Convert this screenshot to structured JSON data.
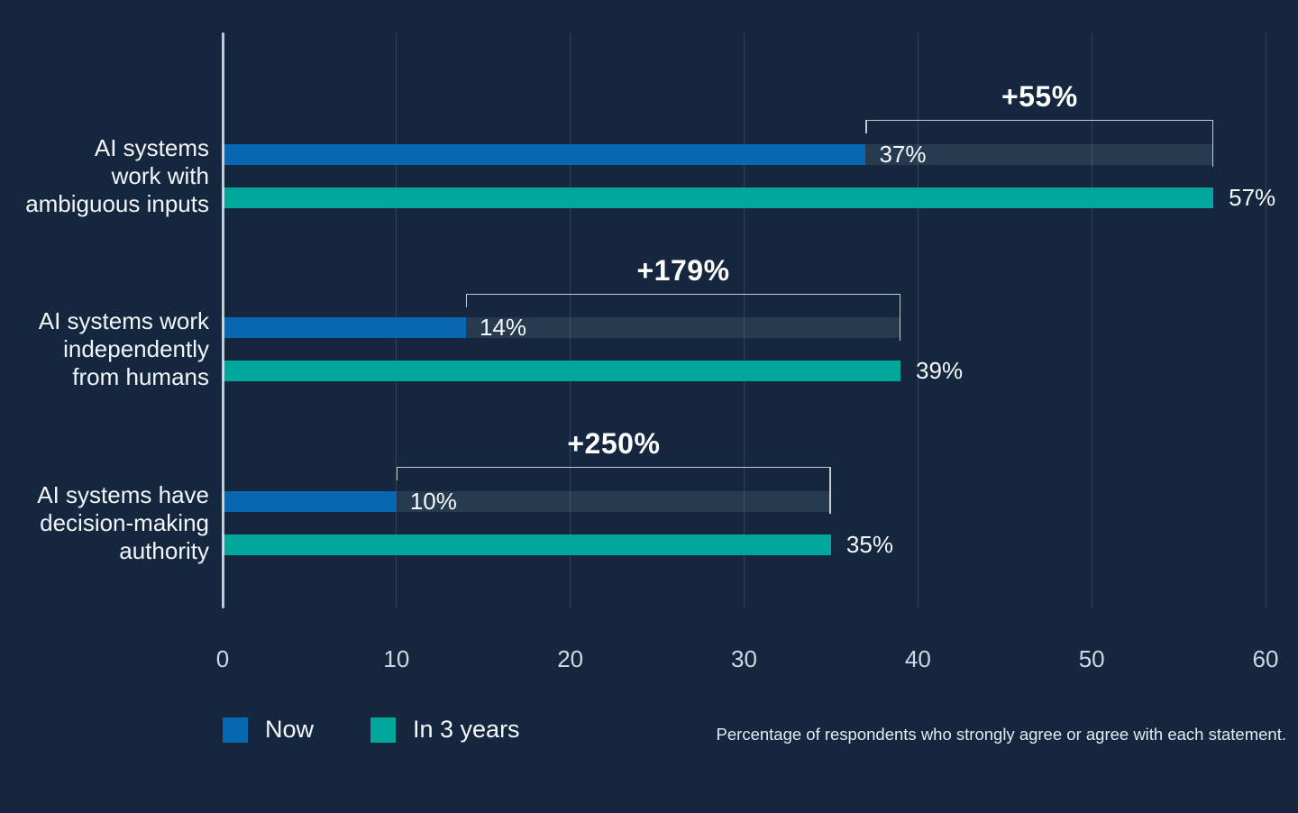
{
  "chart_data": {
    "type": "bar",
    "orientation": "horizontal",
    "title": "",
    "xlabel": "",
    "ylabel": "",
    "xlim": [
      0,
      60
    ],
    "x_ticks": [
      "0",
      "10",
      "20",
      "30",
      "40",
      "50",
      "60"
    ],
    "grid": true,
    "legend_position": "bottom-left",
    "categories": [
      {
        "lines": [
          "AI systems",
          "work with",
          "ambiguous inputs"
        ]
      },
      {
        "lines": [
          "AI systems work",
          "independently",
          "from humans"
        ]
      },
      {
        "lines": [
          "AI systems have",
          "decision-making",
          "authority"
        ]
      }
    ],
    "series": [
      {
        "name": "Now",
        "color": "#0767B1",
        "values": [
          37,
          14,
          10
        ],
        "labels": [
          "37%",
          "14%",
          "10%"
        ]
      },
      {
        "name": "In 3 years",
        "color": "#00A79B",
        "values": [
          57,
          39,
          35
        ],
        "labels": [
          "57%",
          "39%",
          "35%"
        ]
      }
    ],
    "deltas": [
      "+55%",
      "+179%",
      "+250%"
    ],
    "footnote": "Percentage of respondents who strongly agree or agree with each statement."
  },
  "colors": {
    "background": "#14273E",
    "now": "#0767B1",
    "future": "#00A79B",
    "ghost_band": "rgba(210,228,248,0.10)",
    "gridline": "rgba(210,225,240,0.16)",
    "axis_line": "rgba(222,233,244,0.85)",
    "bracket": "rgba(255,255,255,0.75)",
    "label_text": "#FFFFFF",
    "tick_text": "#CDD8E3"
  }
}
